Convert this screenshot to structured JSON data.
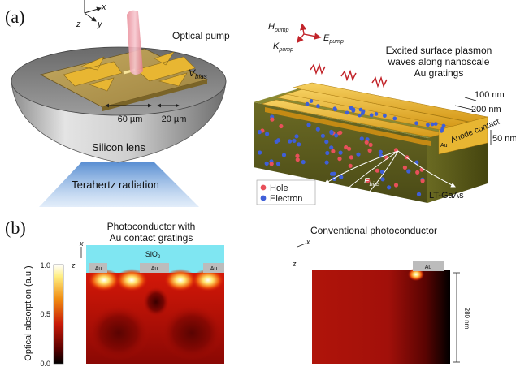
{
  "panel_a": {
    "label": "(a)",
    "axes": {
      "x": "x",
      "y": "y",
      "z": "z"
    },
    "optical_pump": "Optical pump",
    "v_bias": "V",
    "v_bias_sub": "bias",
    "dim_60": "60 µm",
    "dim_20": "20 µm",
    "silicon_lens": "Silicon lens",
    "terahertz": "Terahertz radiation",
    "pump_h": "H",
    "pump_h_sub": "pump",
    "pump_k": "K",
    "pump_k_sub": "pump",
    "pump_e": "E",
    "pump_e_sub": "pump",
    "plasmon_line1": "Excited surface plasmon",
    "plasmon_line2": "waves along nanoscale",
    "plasmon_line3": "Au gratings",
    "dim_100": "100 nm",
    "dim_200": "200 nm",
    "dim_50": "50 nm",
    "anode": "Anode contact",
    "au": "Au",
    "e_bias": "E",
    "e_bias_sub": "bias",
    "legend_hole": "Hole",
    "legend_electron": "Electron",
    "substrate": "LT-GaAs",
    "colors": {
      "hole": "#e8505a",
      "electron": "#3f5fd8",
      "gold": "#e6b02a",
      "sio2": "#7fe6f2"
    }
  },
  "panel_b": {
    "label": "(b)",
    "left_title_1": "Photoconductor with",
    "left_title_2": "Au contact gratings",
    "right_title": "Conventional photoconductor",
    "sio2": "SiO",
    "sio2_sub": "2",
    "au_label": "Au",
    "axis_x": "x",
    "axis_z": "z",
    "depth_label": "280 nm",
    "colorbar": {
      "label": "Optical absorption (a.u.)",
      "ticks": [
        "1.0",
        "0.5",
        "0.0"
      ]
    }
  }
}
